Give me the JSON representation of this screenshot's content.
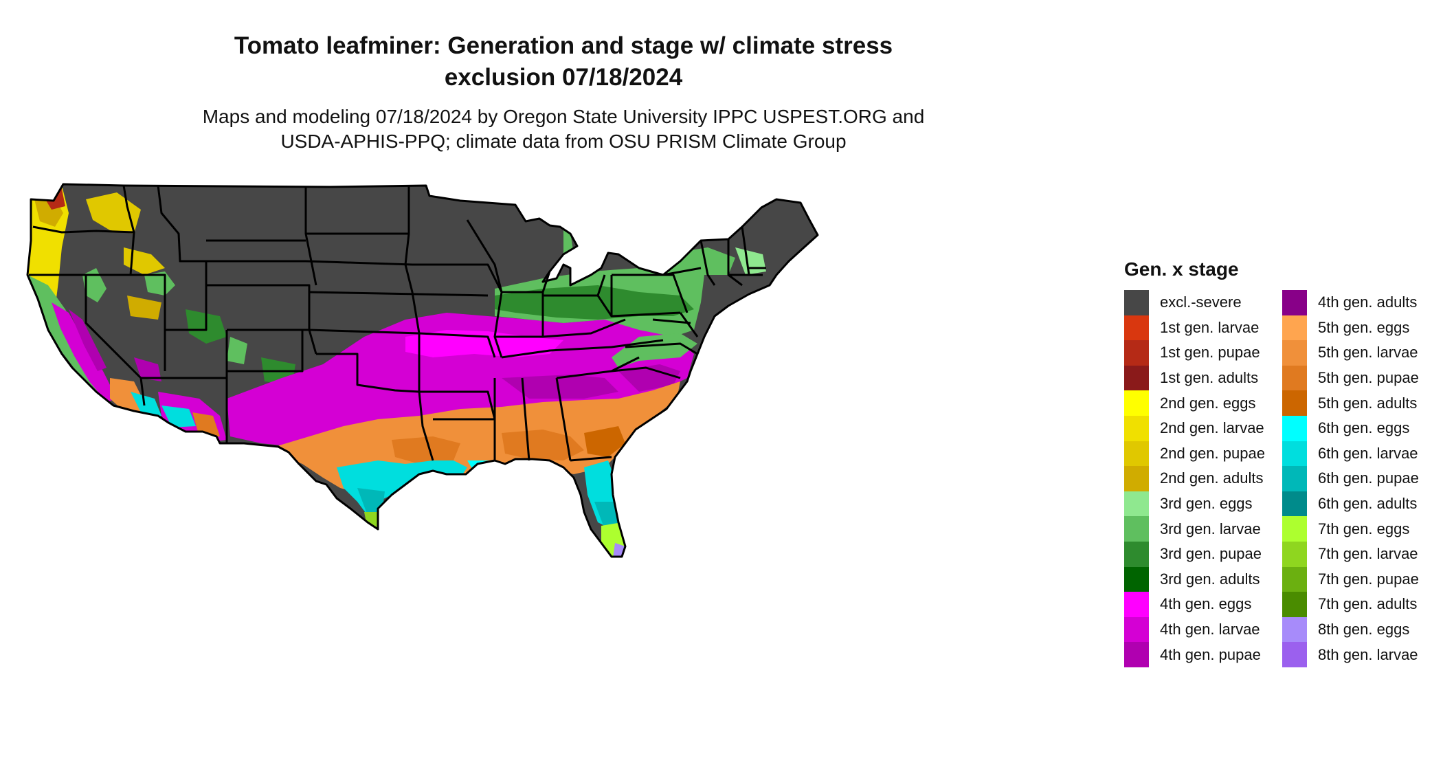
{
  "title_line1": "Tomato leafminer: Generation and stage w/ climate stress",
  "title_line2": "exclusion 07/18/2024",
  "subtitle_line1": "Maps and modeling 07/18/2024 by Oregon State University IPPC USPEST.ORG and",
  "subtitle_line2": "USDA-APHIS-PPQ; climate data from OSU PRISM Climate Group",
  "legend": {
    "title": "Gen. x stage",
    "items": [
      {
        "label": "excl.-severe",
        "color": "#474747"
      },
      {
        "label": "1st gen. larvae",
        "color": "#d9370f"
      },
      {
        "label": "1st gen. pupae",
        "color": "#b52a16"
      },
      {
        "label": "1st gen. adults",
        "color": "#8a1a1a"
      },
      {
        "label": "2nd gen. eggs",
        "color": "#ffff00"
      },
      {
        "label": "2nd gen. larvae",
        "color": "#f0e000"
      },
      {
        "label": "2nd gen. pupae",
        "color": "#e0c800"
      },
      {
        "label": "2nd gen. adults",
        "color": "#d0ac00"
      },
      {
        "label": "3rd gen. eggs",
        "color": "#8fe88f"
      },
      {
        "label": "3rd gen. larvae",
        "color": "#5fbf5f"
      },
      {
        "label": "3rd gen. pupae",
        "color": "#2e8b2e"
      },
      {
        "label": "3rd gen. adults",
        "color": "#006400"
      },
      {
        "label": "4th gen. eggs",
        "color": "#ff00ff"
      },
      {
        "label": "4th gen. larvae",
        "color": "#d400d4"
      },
      {
        "label": "4th gen. pupae",
        "color": "#b000b0"
      },
      {
        "label": "4th gen. adults",
        "color": "#880088"
      },
      {
        "label": "5th gen. eggs",
        "color": "#ffa54f"
      },
      {
        "label": "5th gen. larvae",
        "color": "#f0903a"
      },
      {
        "label": "5th gen. pupae",
        "color": "#e07a20"
      },
      {
        "label": "5th gen. adults",
        "color": "#cc6600"
      },
      {
        "label": "6th gen. eggs",
        "color": "#00ffff"
      },
      {
        "label": "6th gen. larvae",
        "color": "#00dede"
      },
      {
        "label": "6th gen. pupae",
        "color": "#00b8b8"
      },
      {
        "label": "6th gen. adults",
        "color": "#008b8b"
      },
      {
        "label": "7th gen. eggs",
        "color": "#adff2f"
      },
      {
        "label": "7th gen. larvae",
        "color": "#8fd61f"
      },
      {
        "label": "7th gen. pupae",
        "color": "#6bb010"
      },
      {
        "label": "7th gen. adults",
        "color": "#4a8c00"
      },
      {
        "label": "8th gen. eggs",
        "color": "#a78bfa"
      },
      {
        "label": "8th gen. larvae",
        "color": "#9b60ee"
      }
    ]
  }
}
